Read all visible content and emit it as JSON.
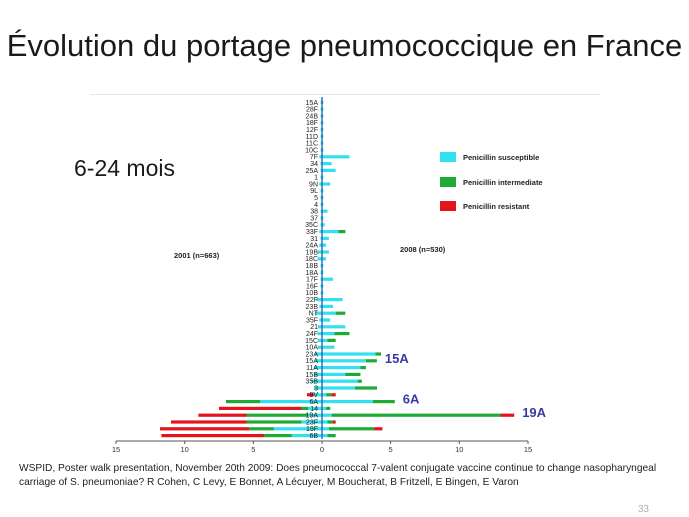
{
  "slide": {
    "title": "Évolution du portage pneumococcique en France",
    "age_group": "6-24 mois",
    "footnote": "WSPID, Poster walk presentation, November 20th  2009: Does pneumococcal 7-valent conjugate vaccine continue to change nasopharyngeal carriage of S. pneumoniae? R Cohen, C Levy, E Bonnet, A Lécuyer, M Boucherat, B Fritzell, E Bingen, E Varon",
    "page_number": "33"
  },
  "colors": {
    "susceptible": "#33e0f2",
    "intermediate": "#1faa35",
    "resistant": "#e3141b",
    "axis": "#555555",
    "callout": "#3a3aa0"
  },
  "chart_data": {
    "type": "bar",
    "orientation": "horizontal-butterfly",
    "left_group": "2001 (n=663)",
    "right_group": "2008 (n=530)",
    "x_ticks": [
      "15",
      "10",
      "5",
      "0",
      "5",
      "10",
      "15"
    ],
    "xlim": [
      -15,
      15
    ],
    "legend": [
      "Penicillin susceptible",
      "Penicillin intermediate",
      "Penicillin resistant"
    ],
    "legend_position": "top-right",
    "callouts": [
      {
        "serotype": "15A",
        "label": "15A"
      },
      {
        "serotype": "6A",
        "label": "6A"
      },
      {
        "serotype": "19A",
        "label": "19A"
      }
    ],
    "categories": [
      "15A",
      "28F",
      "24B",
      "18F",
      "12F",
      "11D",
      "11C",
      "10C",
      "7F",
      "34",
      "25A",
      "1",
      "9N",
      "9L",
      "5",
      "4",
      "38",
      "37",
      "35C",
      "33F",
      "31",
      "24A",
      "19B",
      "18C",
      "18B",
      "18A",
      "17F",
      "16F",
      "10B",
      "22F",
      "23B",
      "NT",
      "35F",
      "21",
      "24F",
      "15C",
      "10A",
      "23A",
      "15A",
      "11A",
      "15B",
      "35B",
      "3",
      "9V",
      "6A",
      "14",
      "19A",
      "23F",
      "19F",
      "6B"
    ],
    "series": [
      {
        "name": "Penicillin susceptible",
        "left": [
          0.1,
          0.1,
          0.1,
          0.1,
          0.1,
          0.1,
          0.1,
          0.1,
          0.2,
          0.1,
          0.1,
          0.1,
          0.2,
          0.1,
          0.1,
          0.1,
          0.1,
          0.1,
          0.1,
          0.2,
          0.1,
          0.2,
          0.3,
          0.3,
          0.1,
          0.1,
          0.1,
          0.1,
          0.1,
          0.4,
          0.2,
          0.5,
          0.2,
          0.3,
          0.3,
          0.3,
          0.3,
          0.5,
          0.5,
          0.6,
          0.6,
          0.8,
          0.6,
          0.6,
          4.5,
          1.0,
          1.0,
          1.5,
          3.5,
          2.2
        ],
        "right": [
          0.1,
          0.1,
          0.1,
          0.1,
          0.1,
          0.1,
          0.1,
          0.1,
          2.0,
          0.7,
          1.0,
          0.1,
          0.6,
          0.1,
          0.1,
          0.1,
          0.4,
          0.1,
          0.2,
          1.2,
          0.5,
          0.3,
          0.5,
          0.3,
          0.1,
          0.1,
          0.8,
          0.1,
          0.1,
          1.5,
          0.8,
          1.0,
          0.6,
          1.7,
          0.9,
          0.4,
          0.9,
          3.9,
          3.2,
          2.8,
          1.7,
          2.6,
          2.4,
          0.3,
          3.7,
          0.3,
          0.7,
          0.4,
          0.5,
          0.4
        ]
      },
      {
        "name": "Penicillin intermediate",
        "left": [
          0,
          0,
          0,
          0,
          0,
          0,
          0,
          0,
          0,
          0,
          0,
          0,
          0,
          0,
          0,
          0,
          0,
          0,
          0,
          0,
          0,
          0,
          0,
          0,
          0,
          0,
          0,
          0,
          0,
          0,
          0,
          0,
          0,
          0,
          0,
          0,
          0,
          0,
          0,
          0,
          0,
          0,
          0,
          0,
          2.5,
          0.5,
          4.5,
          4.0,
          1.8,
          2.0
        ],
        "right": [
          0,
          0,
          0,
          0,
          0,
          0,
          0,
          0,
          0,
          0,
          0,
          0,
          0,
          0,
          0,
          0,
          0,
          0,
          0,
          0.5,
          0,
          0,
          0,
          0,
          0,
          0,
          0,
          0,
          0,
          0,
          0,
          0.7,
          0,
          0,
          1.1,
          0.6,
          0,
          0.4,
          0.8,
          0.4,
          1.1,
          0.3,
          1.6,
          0.4,
          1.6,
          0.3,
          12.3,
          0.4,
          3.3,
          0.6
        ]
      },
      {
        "name": "Penicillin resistant",
        "left": [
          0,
          0,
          0,
          0,
          0,
          0,
          0,
          0,
          0,
          0,
          0,
          0,
          0,
          0,
          0,
          0,
          0,
          0,
          0,
          0,
          0,
          0,
          0,
          0,
          0,
          0,
          0,
          0,
          0,
          0,
          0,
          0,
          0,
          0,
          0,
          0,
          0,
          0,
          0,
          0,
          0,
          0,
          0,
          0.5,
          0,
          6.0,
          3.5,
          5.5,
          6.5,
          7.5
        ],
        "right": [
          0,
          0,
          0,
          0,
          0,
          0,
          0,
          0,
          0,
          0,
          0,
          0,
          0,
          0,
          0,
          0,
          0,
          0,
          0,
          0,
          0,
          0,
          0,
          0,
          0,
          0,
          0,
          0,
          0,
          0,
          0,
          0,
          0,
          0,
          0,
          0,
          0,
          0,
          0,
          0,
          0,
          0,
          0,
          0.3,
          0,
          0,
          1.0,
          0.2,
          0.6,
          0
        ]
      }
    ]
  }
}
